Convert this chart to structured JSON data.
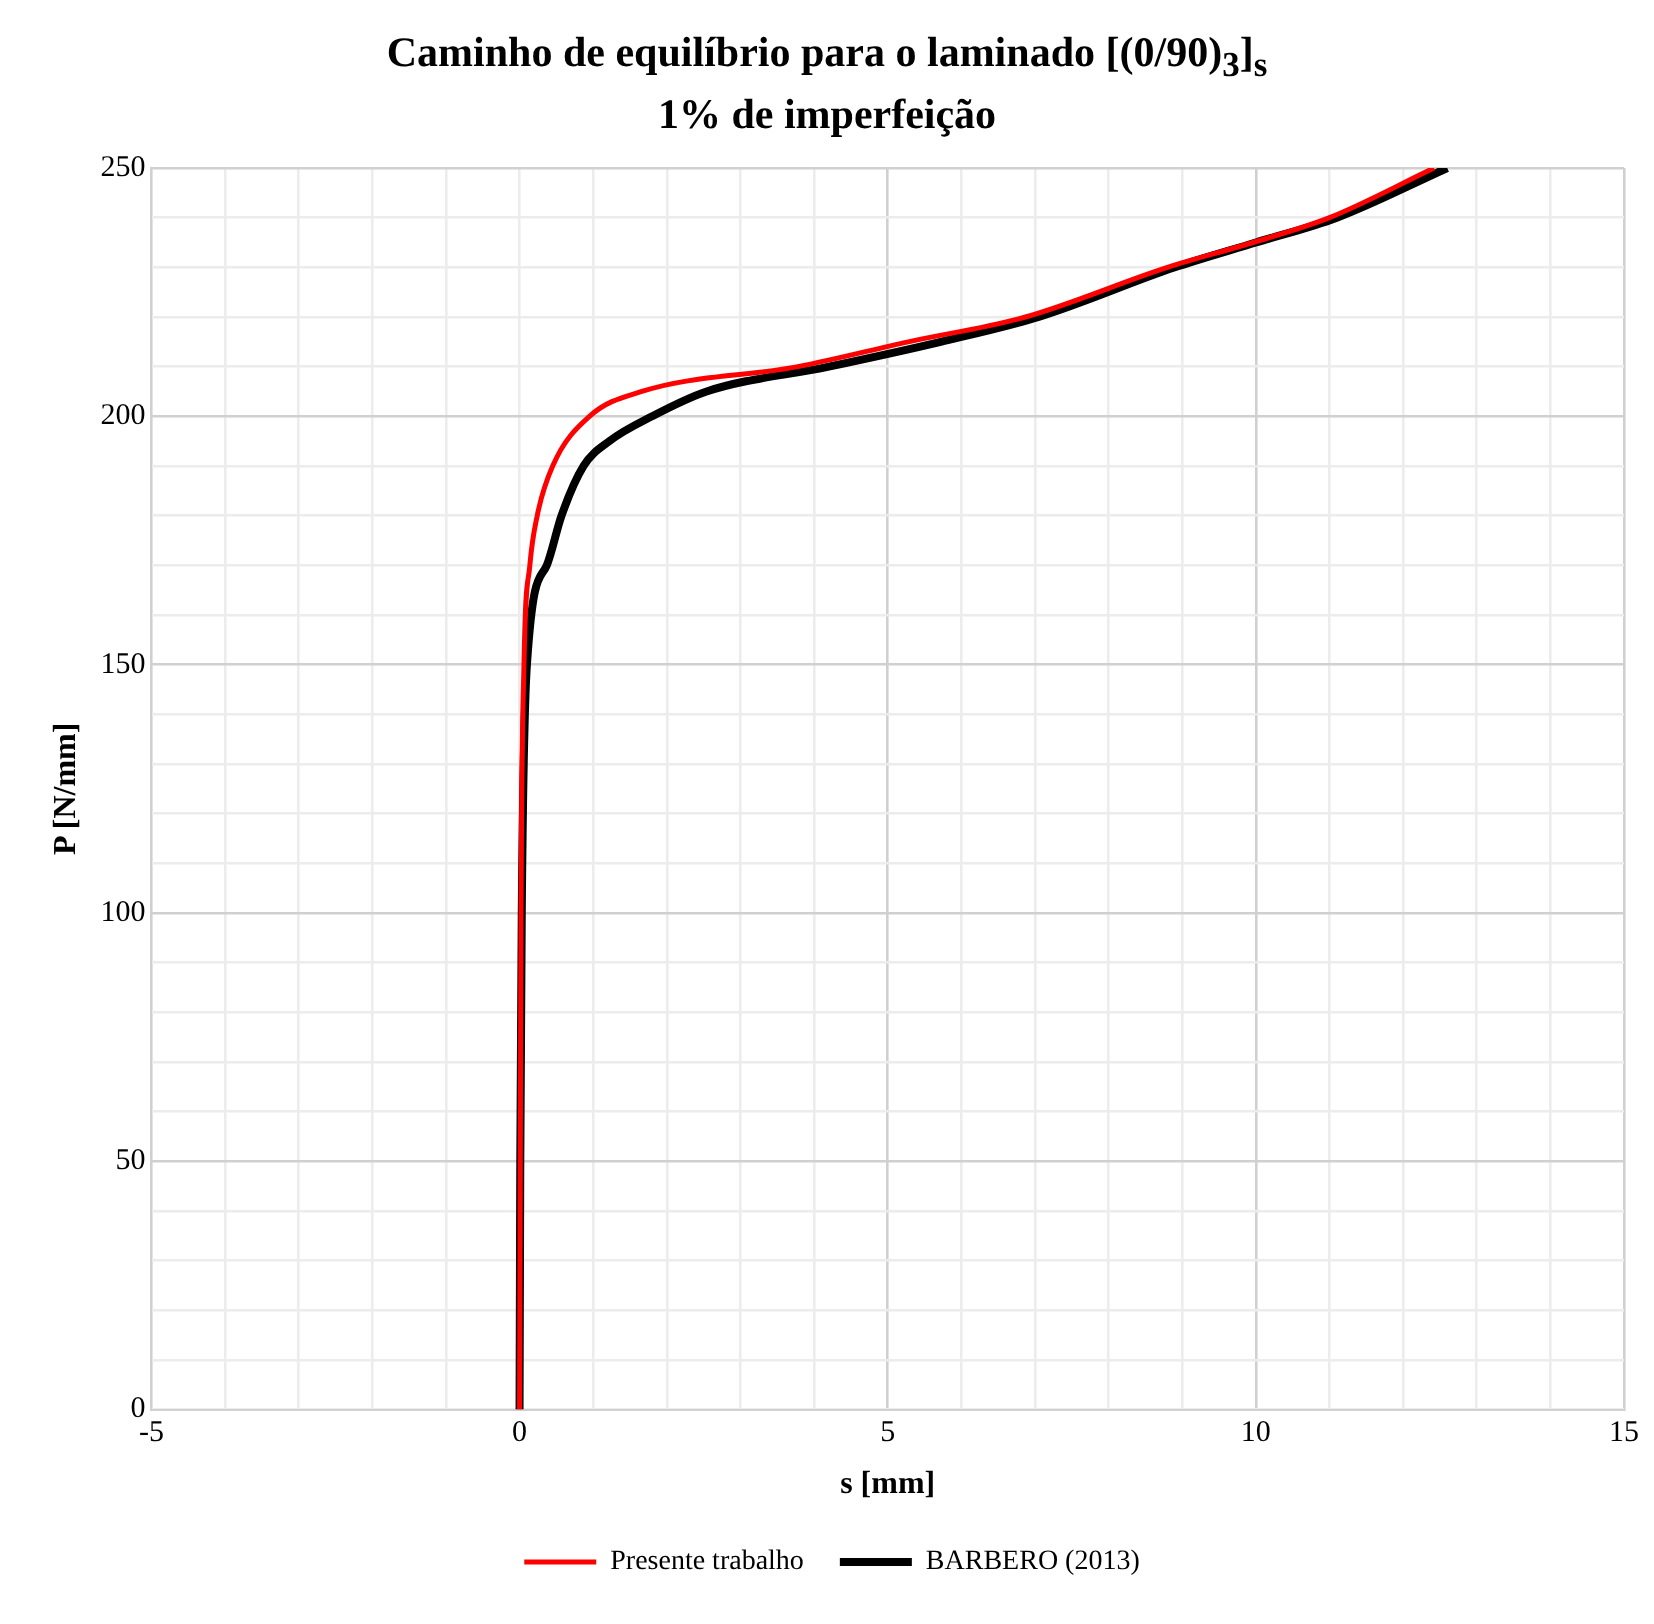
{
  "chart_data": {
    "type": "line",
    "title": "Caminho de equilíbrio para o laminado [(0/90)$_{3}$]$_{s}$",
    "subtitle": "1% de imperfeição",
    "xlabel": "s [mm]",
    "ylabel": "P [N/mm]",
    "series": [
      {
        "name": "Presente trabalho",
        "color": "#ff0000",
        "x": [
          0,
          0.01,
          0.02,
          0.06,
          0.14,
          0.24,
          0.45,
          0.95,
          1.66,
          3.78,
          5.28,
          6.87,
          8.8,
          9.96,
          11.0,
          12.42
        ],
        "values": [
          0,
          50,
          100,
          150,
          170,
          180,
          190,
          200,
          205,
          210,
          215,
          220,
          230,
          235,
          240,
          250
        ]
      },
      {
        "name": "BARBERO (2013)",
        "color": "#000000",
        "x": [
          0,
          0.01,
          0.03,
          0.1,
          0.37,
          0.57,
          0.87,
          1.22,
          1.8,
          2.54,
          4.2,
          5.72,
          7.05,
          8.9,
          10.0,
          11.1,
          12.6
        ],
        "values": [
          0,
          50,
          100,
          150,
          170,
          180,
          190,
          195,
          200,
          205,
          210,
          215,
          220,
          230,
          235,
          240,
          250
        ]
      }
    ],
    "xlim": [
      -5,
      15
    ],
    "xticks": [
      -5,
      {
        "value": -4,
        "label": null
      },
      {
        "value": -3,
        "label": null
      },
      {
        "value": -2,
        "label": null
      },
      {
        "value": -1,
        "label": null
      },
      0,
      {
        "value": 1,
        "label": null
      },
      {
        "value": 2,
        "label": null
      },
      {
        "value": 3,
        "label": null
      },
      {
        "value": 4,
        "label": null
      },
      5,
      {
        "value": 6,
        "label": null
      },
      {
        "value": 7,
        "label": null
      },
      {
        "value": 8,
        "label": null
      },
      {
        "value": 9,
        "label": null
      },
      10,
      {
        "value": 11,
        "label": null
      },
      {
        "value": 12,
        "label": null
      },
      {
        "value": 13,
        "label": null
      },
      {
        "value": 14,
        "label": null
      },
      15
    ],
    "ylim": [
      0,
      250
    ],
    "yticks": [
      0,
      {
        "value": 10,
        "label": null
      },
      {
        "value": 20,
        "label": null
      },
      {
        "value": 30,
        "label": null
      },
      {
        "value": 40,
        "label": null
      },
      50,
      {
        "value": 60,
        "label": null
      },
      {
        "value": 70,
        "label": null
      },
      {
        "value": 80,
        "label": null
      },
      {
        "value": 90,
        "label": null
      },
      100,
      {
        "value": 110,
        "label": null
      },
      {
        "value": 120,
        "label": null
      },
      {
        "value": 130,
        "label": null
      },
      {
        "value": 140,
        "label": null
      },
      150,
      {
        "value": 160,
        "label": null
      },
      {
        "value": 170,
        "label": null
      },
      {
        "value": 180,
        "label": null
      },
      {
        "value": 190,
        "label": null
      },
      200,
      {
        "value": 210,
        "label": null
      },
      {
        "value": 220,
        "label": null
      },
      {
        "value": 230,
        "label": null
      },
      {
        "value": 240,
        "label": null
      },
      250
    ],
    "grid": true,
    "legend": "bottom",
    "marker": "none",
    "line_style": "solid"
  }
}
